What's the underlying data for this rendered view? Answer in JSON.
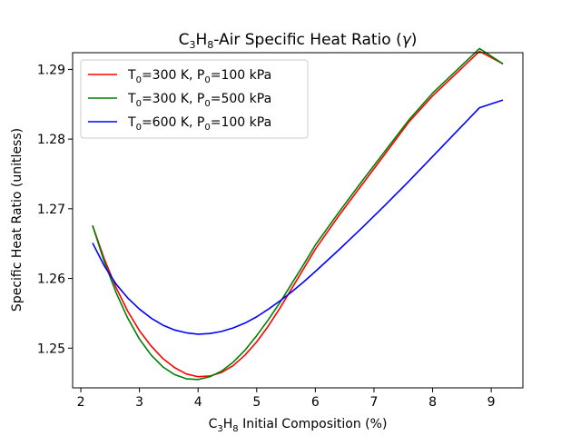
{
  "chart_data": {
    "type": "line",
    "title": {
      "pre": "C",
      "sub1": "3",
      "mid": "H",
      "sub2": "8",
      "post": "-Air Specific Heat Ratio (",
      "sym": "γ",
      "end": ")"
    },
    "xlabel": {
      "pre": "C",
      "sub1": "3",
      "mid": "H",
      "sub2": "8",
      "post": " Initial Composition (%)"
    },
    "ylabel": "Specific Heat Ratio (unitless)",
    "xlim": [
      1.86,
      9.54
    ],
    "ylim": [
      1.2443,
      1.2924
    ],
    "xticks": [
      2,
      3,
      4,
      5,
      6,
      7,
      8,
      9
    ],
    "yticks": [
      1.25,
      1.26,
      1.27,
      1.28,
      1.29
    ],
    "ytick_labels": [
      "1.25",
      "1.26",
      "1.27",
      "1.28",
      "1.29"
    ],
    "grid": false,
    "legend_position": "upper-left",
    "x": [
      2.2,
      2.4,
      2.6,
      2.8,
      3.0,
      3.2,
      3.4,
      3.6,
      3.8,
      4.0,
      4.2,
      4.4,
      4.6,
      4.8,
      5.0,
      5.2,
      5.4,
      5.6,
      5.8,
      6.0,
      6.4,
      6.8,
      7.2,
      7.6,
      8.0,
      8.4,
      8.8,
      9.2
    ],
    "series": [
      {
        "name": {
          "a": "T",
          "b": "0",
          "c": "=300 K, P",
          "d": "0",
          "e": "=100 kPa"
        },
        "color": "#ff0000",
        "values": [
          1.2676,
          1.2628,
          1.2587,
          1.2553,
          1.2525,
          1.2503,
          1.2485,
          1.2472,
          1.2463,
          1.2459,
          1.246,
          1.2465,
          1.2475,
          1.249,
          1.2509,
          1.2532,
          1.2558,
          1.2586,
          1.2614,
          1.2642,
          1.269,
          1.2735,
          1.278,
          1.2825,
          1.2862,
          1.2894,
          1.2926,
          1.2908
        ]
      },
      {
        "name": {
          "a": "T",
          "b": "0",
          "c": "=300 K, P",
          "d": "0",
          "e": "=500 kPa"
        },
        "color": "#008000",
        "values": [
          1.2676,
          1.2624,
          1.258,
          1.2543,
          1.2513,
          1.249,
          1.2473,
          1.2462,
          1.2456,
          1.2455,
          1.2459,
          1.2467,
          1.248,
          1.2497,
          1.2518,
          1.2541,
          1.2566,
          1.2593,
          1.262,
          1.2648,
          1.2695,
          1.274,
          1.2784,
          1.2828,
          1.2866,
          1.2898,
          1.293,
          1.2908
        ]
      },
      {
        "name": {
          "a": "T",
          "b": "0",
          "c": "=600 K, P",
          "d": "0",
          "e": "=100 kPa"
        },
        "color": "#0000ff",
        "values": [
          1.2651,
          1.2618,
          1.2592,
          1.2572,
          1.2556,
          1.2543,
          1.2533,
          1.2526,
          1.2522,
          1.252,
          1.2521,
          1.2524,
          1.2529,
          1.2536,
          1.2545,
          1.2556,
          1.2568,
          1.2581,
          1.2595,
          1.261,
          1.2641,
          1.2673,
          1.2706,
          1.274,
          1.2775,
          1.281,
          1.2845,
          1.2856
        ]
      }
    ]
  }
}
